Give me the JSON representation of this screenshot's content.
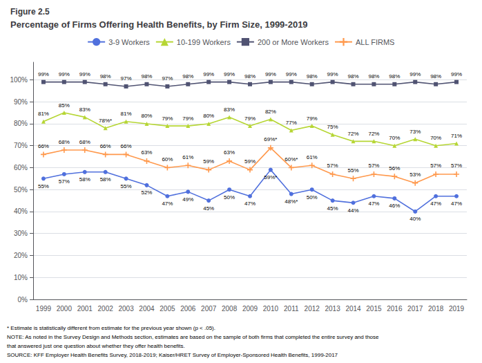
{
  "chart_data": {
    "type": "line",
    "figure_label": "Figure 2.5",
    "title": "Percentage of Firms Offering Health Benefits, by Firm Size, 1999-2019",
    "categories": [
      "1999",
      "2000",
      "2001",
      "2002",
      "2003",
      "2004",
      "2005",
      "2006",
      "2007",
      "2008",
      "2009",
      "2010",
      "2011",
      "2012",
      "2013",
      "2014",
      "2015",
      "2016",
      "2017",
      "2018",
      "2019"
    ],
    "series": [
      {
        "name": "3-9 Workers",
        "marker": "circle",
        "values": [
          55,
          57,
          58,
          58,
          55,
          52,
          47,
          49,
          45,
          50,
          47,
          59,
          48,
          50,
          45,
          44,
          47,
          46,
          40,
          47,
          47
        ],
        "value_labels": [
          "55%",
          "57%",
          "58%",
          "58%",
          "55%",
          "52%",
          "47%",
          "49%",
          "45%",
          "50%",
          "47%",
          "59%*",
          "48%*",
          "50%",
          "45%",
          "44%",
          "47%",
          "46%",
          "40%",
          "47%",
          "47%"
        ]
      },
      {
        "name": "10-199 Workers",
        "marker": "triangle",
        "values": [
          81,
          85,
          83,
          78,
          81,
          80,
          79,
          79,
          80,
          83,
          79,
          82,
          77,
          79,
          75,
          72,
          72,
          70,
          73,
          70,
          71
        ],
        "value_labels": [
          "81%",
          "85%",
          "83%",
          "78%*",
          "81%",
          "80%",
          "79%",
          "79%",
          "80%",
          "83%",
          "79%",
          "82%",
          "77%",
          "79%",
          "75%",
          "72%",
          "72%",
          "70%",
          "73%",
          "70%",
          "71%"
        ]
      },
      {
        "name": "200 or More Workers",
        "marker": "square",
        "values": [
          99,
          99,
          99,
          98,
          97,
          98,
          97,
          98,
          99,
          99,
          98,
          99,
          99,
          98,
          99,
          98,
          98,
          98,
          99,
          98,
          99
        ],
        "value_labels": [
          "99%",
          "99%",
          "99%",
          "98%",
          "97%",
          "98%",
          "97%",
          "98%",
          "99%",
          "99%",
          "98%",
          "99%",
          "99%",
          "98%",
          "99%",
          "98%",
          "98%",
          "98%",
          "99%",
          "98%",
          "99%"
        ]
      },
      {
        "name": "ALL FIRMS",
        "marker": "plus",
        "values": [
          66,
          68,
          68,
          66,
          66,
          63,
          60,
          61,
          59,
          63,
          59,
          69,
          60,
          61,
          57,
          55,
          57,
          56,
          53,
          57,
          57
        ],
        "value_labels": [
          "66%",
          "68%",
          "68%",
          "66%",
          "66%",
          "63%",
          "60%",
          "61%",
          "59%",
          "63%",
          "59%",
          "69%*",
          "60%*",
          "61%",
          "57%",
          "55%",
          "57%",
          "56%",
          "53%",
          "57%",
          "57%"
        ]
      }
    ],
    "ylim": [
      0,
      108
    ],
    "yticks": [
      {
        "value": 0,
        "label": "0%"
      },
      {
        "value": 10,
        "label": "10%"
      },
      {
        "value": 20,
        "label": "20%"
      },
      {
        "value": 30,
        "label": "30%"
      },
      {
        "value": 40,
        "label": "40%"
      },
      {
        "value": 50,
        "label": "50%"
      },
      {
        "value": 60,
        "label": "60%"
      },
      {
        "value": 70,
        "label": "70%"
      },
      {
        "value": 80,
        "label": "80%"
      },
      {
        "value": 90,
        "label": "90%"
      },
      {
        "value": 100,
        "label": "100%"
      }
    ],
    "grid": true,
    "legend": "top",
    "data_labels": true,
    "notes": [
      "* Estimate is statistically different from estimate for the previous year shown (p < .05).",
      "NOTE: As noted in the Survey Design and Methods section, estimates are based on the sample of both firms that completed the entire survey and those",
      "that answered just one question about whether they offer health benefits.",
      "SOURCE: KFF Employer Health Benefits Survey, 2018-2019; Kaiser/HRET Survey of Employer-Sponsored Health Benefits, 1999-2017"
    ]
  }
}
